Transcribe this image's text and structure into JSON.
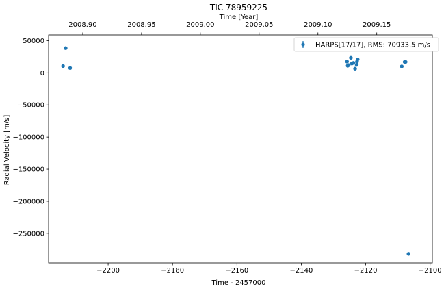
{
  "chart_data": {
    "type": "scatter",
    "title": "TIC 78959225",
    "xlabel": "Time - 2457000",
    "ylabel": "Radial Velocity [m/s]",
    "top_xlabel": "Time [Year]",
    "xlim": [
      -2218.5,
      -2099.3
    ],
    "ylim": [
      -296000,
      59000
    ],
    "xticks": [
      -2200,
      -2180,
      -2160,
      -2140,
      -2120,
      -2100
    ],
    "xtick_labels": [
      "−2200",
      "−2180",
      "−2160",
      "−2140",
      "−2120",
      "−2100"
    ],
    "yticks": [
      50000,
      0,
      -50000,
      -100000,
      -150000,
      -200000,
      -250000
    ],
    "ytick_labels": [
      "50000",
      "0",
      "−50000",
      "−100000",
      "−150000",
      "−200000",
      "−250000"
    ],
    "top_xticks": [
      2008.9,
      2008.95,
      2009.0,
      2009.05,
      2009.1,
      2009.15
    ],
    "top_xtick_labels": [
      "2008.90",
      "2008.95",
      "2009.00",
      "2009.05",
      "2009.10",
      "2009.15"
    ],
    "grid": false,
    "legend_position": "top-right",
    "series": [
      {
        "name": "HARPS[17/17], RMS:   70933.5 m/s",
        "color": "#1f77b4",
        "points": [
          {
            "x": -2214.0,
            "y": 10500
          },
          {
            "x": -2213.2,
            "y": 38500
          },
          {
            "x": -2211.8,
            "y": 7500
          },
          {
            "x": -2125.8,
            "y": 17500
          },
          {
            "x": -2125.6,
            "y": 11000
          },
          {
            "x": -2125.3,
            "y": 12000
          },
          {
            "x": -2124.6,
            "y": 23500
          },
          {
            "x": -2124.3,
            "y": 14500
          },
          {
            "x": -2123.8,
            "y": 15500
          },
          {
            "x": -2123.3,
            "y": 6500
          },
          {
            "x": -2122.8,
            "y": 12500
          },
          {
            "x": -2122.7,
            "y": 17500
          },
          {
            "x": -2122.5,
            "y": 21000
          },
          {
            "x": -2108.8,
            "y": 10000
          },
          {
            "x": -2107.9,
            "y": 17000
          },
          {
            "x": -2107.6,
            "y": 17000
          },
          {
            "x": -2106.7,
            "y": -282000
          }
        ]
      }
    ]
  }
}
